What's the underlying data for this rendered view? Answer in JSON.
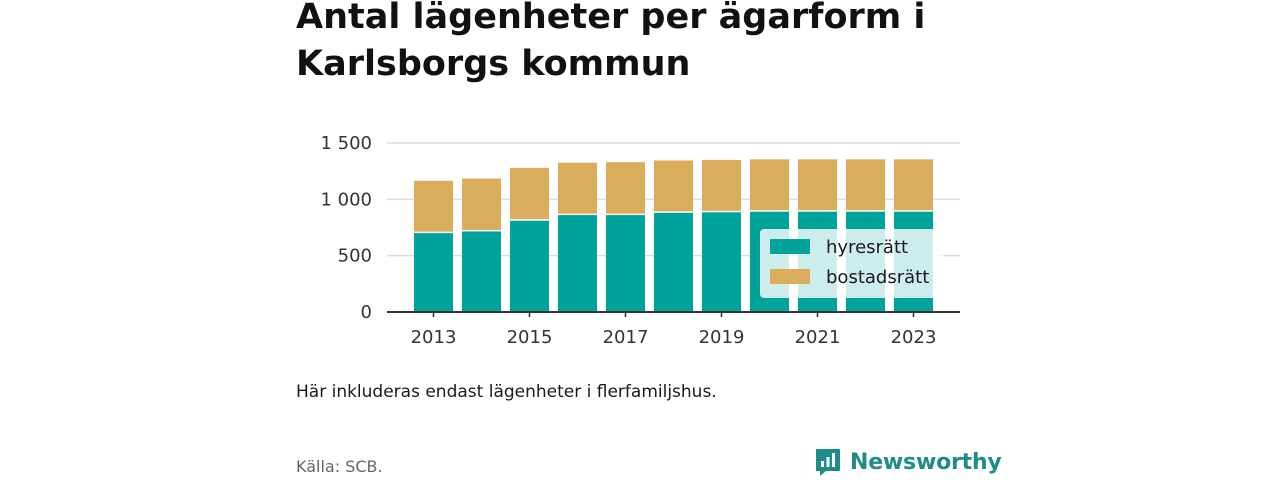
{
  "title": "Antal lägenheter per ägarform i Karlsborgs kommun",
  "note": "Här inkluderas endast lägenheter i flerfamiljshus.",
  "source": "Källa: SCB.",
  "brand": "Newsworthy",
  "colors": {
    "hyresratt": "#00a39a",
    "bostadsratt": "#d9ad5c",
    "brand": "#1f8c87"
  },
  "chart_data": {
    "type": "bar",
    "stacked": true,
    "categories": [
      "2013",
      "2014",
      "2015",
      "2016",
      "2017",
      "2018",
      "2019",
      "2020",
      "2021",
      "2022",
      "2023"
    ],
    "series": [
      {
        "name": "hyresrätt",
        "values": [
          700,
          715,
          810,
          860,
          860,
          880,
          885,
          890,
          890,
          890,
          890
        ]
      },
      {
        "name": "bostadsrätt",
        "values": [
          465,
          470,
          470,
          465,
          470,
          465,
          465,
          465,
          465,
          465,
          465
        ]
      }
    ],
    "x_tick_labels": [
      "2013",
      "2015",
      "2017",
      "2019",
      "2021",
      "2023"
    ],
    "y_ticks": [
      0,
      500,
      1000,
      1500
    ],
    "y_tick_labels": [
      "0",
      "500",
      "1 000",
      "1 500"
    ],
    "ylim": [
      0,
      1500
    ],
    "grid": true,
    "legend_position": "bottom-right"
  }
}
